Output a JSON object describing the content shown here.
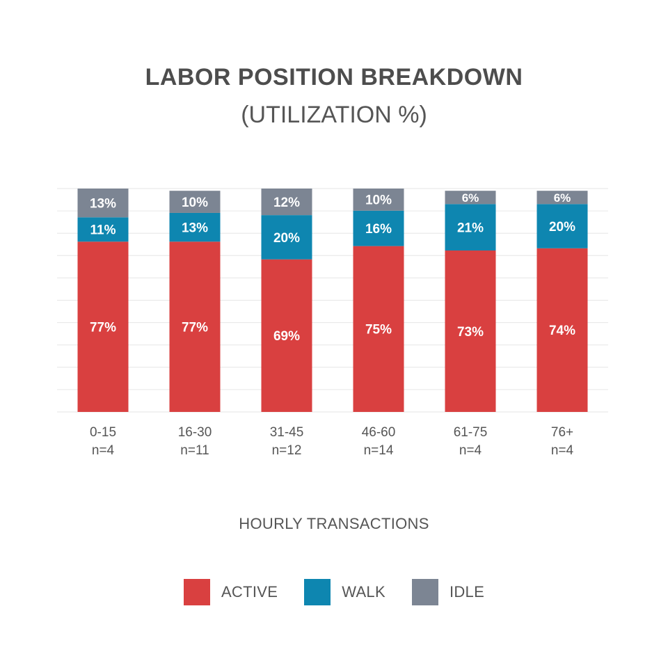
{
  "colors": {
    "active": "#d94040",
    "walk": "#0e86b0",
    "idle": "#7c8593",
    "grid": "#e6e6e6",
    "axis_text": "#555555"
  },
  "chart_data": {
    "type": "bar",
    "stacked": true,
    "title": "LABOR POSITION BREAKDOWN",
    "subtitle": "(UTILIZATION %)",
    "xlabel": "HOURLY TRANSACTIONS",
    "ylabel": "",
    "ylim": [
      0,
      100
    ],
    "grid": true,
    "legend_position": "bottom",
    "categories": [
      "0-15",
      "16-30",
      "31-45",
      "46-60",
      "61-75",
      "76+"
    ],
    "category_counts": [
      "n=4",
      "n=11",
      "n=12",
      "n=14",
      "n=4",
      "n=4"
    ],
    "series": [
      {
        "name": "ACTIVE",
        "color": "#d94040",
        "values": [
          77,
          77,
          69,
          75,
          73,
          74
        ]
      },
      {
        "name": "WALK",
        "color": "#0e86b0",
        "values": [
          11,
          13,
          20,
          16,
          21,
          20
        ]
      },
      {
        "name": "IDLE",
        "color": "#7c8593",
        "values": [
          13,
          10,
          12,
          10,
          6,
          6
        ]
      }
    ],
    "value_suffix": "%"
  }
}
